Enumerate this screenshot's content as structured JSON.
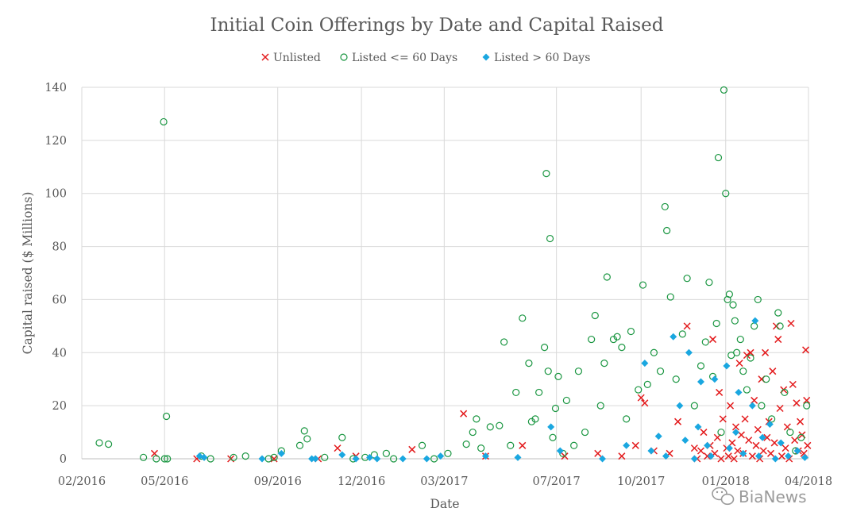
{
  "chart_data": {
    "type": "scatter",
    "title": "Initial Coin Offerings by Date and Capital Raised",
    "xlabel": "Date",
    "ylabel": "Capital raised ($ Millions)",
    "x_ticks": [
      "02/2016",
      "05/2016",
      "09/2016",
      "12/2016",
      "03/2017",
      "07/2017",
      "10/2017",
      "01/2018",
      "04/2018"
    ],
    "y_ticks": [
      "0",
      "20",
      "40",
      "60",
      "80",
      "100",
      "120",
      "140"
    ],
    "xlim": [
      "2016-02-01",
      "2018-04-01"
    ],
    "ylim": [
      0,
      140
    ],
    "grid": true,
    "legend_position": "top",
    "series": [
      {
        "name": "Unlisted",
        "marker": "x",
        "color": "#e31a1c",
        "points": [
          [
            "2016-04-20",
            2
          ],
          [
            "2016-06-05",
            0
          ],
          [
            "2016-07-12",
            0
          ],
          [
            "2016-08-28",
            0
          ],
          [
            "2016-10-15",
            0
          ],
          [
            "2016-11-05",
            4
          ],
          [
            "2016-11-25",
            1
          ],
          [
            "2017-01-25",
            3.5
          ],
          [
            "2017-03-22",
            17
          ],
          [
            "2017-04-15",
            1
          ],
          [
            "2017-05-25",
            5
          ],
          [
            "2017-07-10",
            1
          ],
          [
            "2017-08-15",
            2
          ],
          [
            "2017-09-10",
            1
          ],
          [
            "2017-09-25",
            5
          ],
          [
            "2017-10-01",
            23
          ],
          [
            "2017-10-05",
            21
          ],
          [
            "2017-10-15",
            3
          ],
          [
            "2017-11-01",
            2
          ],
          [
            "2017-11-10",
            14
          ],
          [
            "2017-11-20",
            50
          ],
          [
            "2017-11-28",
            4
          ],
          [
            "2017-12-01",
            0
          ],
          [
            "2017-12-05",
            3
          ],
          [
            "2017-12-08",
            10
          ],
          [
            "2017-12-12",
            1
          ],
          [
            "2017-12-15",
            5
          ],
          [
            "2017-12-18",
            45
          ],
          [
            "2017-12-20",
            2
          ],
          [
            "2017-12-23",
            8
          ],
          [
            "2017-12-25",
            25
          ],
          [
            "2017-12-27",
            0
          ],
          [
            "2017-12-29",
            15
          ],
          [
            "2018-01-02",
            4
          ],
          [
            "2018-01-04",
            1
          ],
          [
            "2018-01-06",
            20
          ],
          [
            "2018-01-08",
            6
          ],
          [
            "2018-01-10",
            0
          ],
          [
            "2018-01-12",
            12
          ],
          [
            "2018-01-14",
            3
          ],
          [
            "2018-01-16",
            36
          ],
          [
            "2018-01-18",
            9
          ],
          [
            "2018-01-20",
            2
          ],
          [
            "2018-01-22",
            15
          ],
          [
            "2018-01-24",
            39
          ],
          [
            "2018-01-26",
            7
          ],
          [
            "2018-01-28",
            40
          ],
          [
            "2018-01-30",
            1
          ],
          [
            "2018-02-01",
            22
          ],
          [
            "2018-02-03",
            5
          ],
          [
            "2018-02-05",
            11
          ],
          [
            "2018-02-07",
            0
          ],
          [
            "2018-02-09",
            30
          ],
          [
            "2018-02-11",
            3
          ],
          [
            "2018-02-13",
            40
          ],
          [
            "2018-02-15",
            8
          ],
          [
            "2018-02-17",
            14
          ],
          [
            "2018-02-19",
            2
          ],
          [
            "2018-02-21",
            33
          ],
          [
            "2018-02-23",
            6
          ],
          [
            "2018-02-25",
            50
          ],
          [
            "2018-02-27",
            45
          ],
          [
            "2018-03-01",
            19
          ],
          [
            "2018-03-03",
            1
          ],
          [
            "2018-03-05",
            26
          ],
          [
            "2018-03-07",
            4
          ],
          [
            "2018-03-09",
            12
          ],
          [
            "2018-03-11",
            0
          ],
          [
            "2018-03-13",
            51
          ],
          [
            "2018-03-15",
            28
          ],
          [
            "2018-03-17",
            7
          ],
          [
            "2018-03-19",
            21
          ],
          [
            "2018-03-21",
            3
          ],
          [
            "2018-03-23",
            14
          ],
          [
            "2018-03-25",
            9
          ],
          [
            "2018-03-27",
            2
          ],
          [
            "2018-03-29",
            41
          ],
          [
            "2018-03-30",
            22
          ],
          [
            "2018-03-31",
            5
          ]
        ]
      },
      {
        "name": "Listed <= 60 Days",
        "marker": "circle-open",
        "color": "#1a9641",
        "points": [
          [
            "2016-02-20",
            6
          ],
          [
            "2016-03-01",
            5.5
          ],
          [
            "2016-04-08",
            0.5
          ],
          [
            "2016-04-22",
            0
          ],
          [
            "2016-04-30",
            127
          ],
          [
            "2016-05-01",
            0
          ],
          [
            "2016-05-03",
            16
          ],
          [
            "2016-05-04",
            0
          ],
          [
            "2016-06-10",
            1
          ],
          [
            "2016-06-20",
            0
          ],
          [
            "2016-07-15",
            0.5
          ],
          [
            "2016-07-28",
            1
          ],
          [
            "2016-08-22",
            0
          ],
          [
            "2016-08-28",
            0.5
          ],
          [
            "2016-09-05",
            3
          ],
          [
            "2016-09-25",
            5
          ],
          [
            "2016-09-30",
            10.5
          ],
          [
            "2016-10-03",
            7.5
          ],
          [
            "2016-10-22",
            0.5
          ],
          [
            "2016-11-10",
            8
          ],
          [
            "2016-11-22",
            0
          ],
          [
            "2016-12-05",
            0.5
          ],
          [
            "2016-12-15",
            1.5
          ],
          [
            "2016-12-28",
            2
          ],
          [
            "2017-01-05",
            0
          ],
          [
            "2017-02-05",
            5
          ],
          [
            "2017-02-18",
            0
          ],
          [
            "2017-03-05",
            2
          ],
          [
            "2017-03-25",
            5.5
          ],
          [
            "2017-04-01",
            10
          ],
          [
            "2017-04-05",
            15
          ],
          [
            "2017-04-10",
            4
          ],
          [
            "2017-04-20",
            12
          ],
          [
            "2017-04-30",
            12.5
          ],
          [
            "2017-05-05",
            44
          ],
          [
            "2017-05-12",
            5
          ],
          [
            "2017-05-18",
            25
          ],
          [
            "2017-05-25",
            53
          ],
          [
            "2017-06-01",
            36
          ],
          [
            "2017-06-04",
            14
          ],
          [
            "2017-06-08",
            15
          ],
          [
            "2017-06-12",
            25
          ],
          [
            "2017-06-18",
            42
          ],
          [
            "2017-06-20",
            107.5
          ],
          [
            "2017-06-22",
            33
          ],
          [
            "2017-06-24",
            83
          ],
          [
            "2017-06-27",
            8
          ],
          [
            "2017-06-30",
            19
          ],
          [
            "2017-07-03",
            31
          ],
          [
            "2017-07-08",
            2
          ],
          [
            "2017-07-12",
            22
          ],
          [
            "2017-07-20",
            5
          ],
          [
            "2017-07-25",
            33
          ],
          [
            "2017-08-01",
            10
          ],
          [
            "2017-08-08",
            45
          ],
          [
            "2017-08-12",
            54
          ],
          [
            "2017-08-18",
            20
          ],
          [
            "2017-08-22",
            36
          ],
          [
            "2017-08-25",
            68.5
          ],
          [
            "2017-09-01",
            45
          ],
          [
            "2017-09-05",
            46
          ],
          [
            "2017-09-10",
            42
          ],
          [
            "2017-09-15",
            15
          ],
          [
            "2017-09-20",
            48
          ],
          [
            "2017-09-28",
            26
          ],
          [
            "2017-10-03",
            65.5
          ],
          [
            "2017-10-08",
            28
          ],
          [
            "2017-10-15",
            40
          ],
          [
            "2017-10-22",
            33
          ],
          [
            "2017-10-27",
            95
          ],
          [
            "2017-10-29",
            86
          ],
          [
            "2017-11-02",
            61
          ],
          [
            "2017-11-08",
            30
          ],
          [
            "2017-11-15",
            47
          ],
          [
            "2017-11-20",
            68
          ],
          [
            "2017-11-28",
            20
          ],
          [
            "2017-12-05",
            35
          ],
          [
            "2017-12-10",
            44
          ],
          [
            "2017-12-14",
            66.5
          ],
          [
            "2017-12-18",
            31
          ],
          [
            "2017-12-22",
            51
          ],
          [
            "2017-12-24",
            113.5
          ],
          [
            "2017-12-27",
            10
          ],
          [
            "2017-12-30",
            139
          ],
          [
            "2018-01-01",
            100
          ],
          [
            "2018-01-03",
            60
          ],
          [
            "2018-01-05",
            62
          ],
          [
            "2018-01-07",
            39
          ],
          [
            "2018-01-09",
            58
          ],
          [
            "2018-01-11",
            52
          ],
          [
            "2018-01-13",
            40
          ],
          [
            "2018-01-17",
            45
          ],
          [
            "2018-01-20",
            33
          ],
          [
            "2018-01-24",
            26
          ],
          [
            "2018-01-28",
            38
          ],
          [
            "2018-02-01",
            50
          ],
          [
            "2018-02-05",
            60
          ],
          [
            "2018-02-09",
            20
          ],
          [
            "2018-02-14",
            30
          ],
          [
            "2018-02-20",
            15
          ],
          [
            "2018-02-27",
            55
          ],
          [
            "2018-03-01",
            50
          ],
          [
            "2018-03-06",
            25
          ],
          [
            "2018-03-12",
            10
          ],
          [
            "2018-03-18",
            3
          ],
          [
            "2018-03-24",
            8
          ],
          [
            "2018-03-30",
            20
          ]
        ]
      },
      {
        "name": "Listed > 60 Days",
        "marker": "diamond",
        "color": "#1aa7e0",
        "points": [
          [
            "2016-06-08",
            1
          ],
          [
            "2016-06-13",
            0.5
          ],
          [
            "2016-08-15",
            0
          ],
          [
            "2016-09-05",
            2
          ],
          [
            "2016-10-08",
            0
          ],
          [
            "2016-10-12",
            0
          ],
          [
            "2016-11-10",
            1.5
          ],
          [
            "2016-11-25",
            0
          ],
          [
            "2016-12-10",
            0.5
          ],
          [
            "2016-12-18",
            0
          ],
          [
            "2017-01-15",
            0
          ],
          [
            "2017-02-10",
            0
          ],
          [
            "2017-02-25",
            1
          ],
          [
            "2017-04-15",
            1
          ],
          [
            "2017-05-20",
            0.5
          ],
          [
            "2017-06-25",
            12
          ],
          [
            "2017-07-05",
            3
          ],
          [
            "2017-08-20",
            0
          ],
          [
            "2017-09-15",
            5
          ],
          [
            "2017-10-05",
            36
          ],
          [
            "2017-10-12",
            3
          ],
          [
            "2017-10-20",
            8.5
          ],
          [
            "2017-10-28",
            1
          ],
          [
            "2017-11-05",
            46
          ],
          [
            "2017-11-12",
            20
          ],
          [
            "2017-11-18",
            7
          ],
          [
            "2017-11-22",
            40
          ],
          [
            "2017-11-28",
            0
          ],
          [
            "2017-12-02",
            12
          ],
          [
            "2017-12-05",
            29
          ],
          [
            "2017-12-12",
            5
          ],
          [
            "2017-12-16",
            1
          ],
          [
            "2017-12-20",
            30
          ],
          [
            "2018-01-02",
            35
          ],
          [
            "2018-01-05",
            4
          ],
          [
            "2018-01-12",
            10
          ],
          [
            "2018-01-15",
            25
          ],
          [
            "2018-01-20",
            2
          ],
          [
            "2018-01-30",
            20
          ],
          [
            "2018-02-02",
            52
          ],
          [
            "2018-02-06",
            1
          ],
          [
            "2018-02-10",
            8
          ],
          [
            "2018-02-18",
            13
          ],
          [
            "2018-02-24",
            0
          ],
          [
            "2018-03-02",
            6
          ],
          [
            "2018-03-10",
            1
          ],
          [
            "2018-03-20",
            3
          ],
          [
            "2018-03-28",
            0.5
          ]
        ]
      }
    ]
  },
  "watermark": "BiaNews"
}
